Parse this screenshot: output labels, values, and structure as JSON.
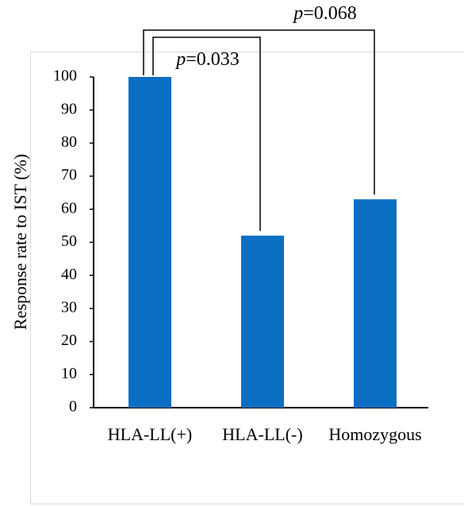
{
  "chart_data": {
    "type": "bar",
    "y_label": "Response rate to IST (%)",
    "categories": [
      "HLA-LL(+)",
      "HLA-LL(-)",
      "Homozygous"
    ],
    "values": [
      100,
      52,
      63
    ],
    "color": "#0a6fc2",
    "ylim": [
      0,
      100
    ],
    "yticks": [
      0,
      10,
      20,
      30,
      40,
      50,
      60,
      70,
      80,
      90,
      100
    ],
    "annotations": [
      "p=0.033",
      "p=0.068"
    ]
  }
}
